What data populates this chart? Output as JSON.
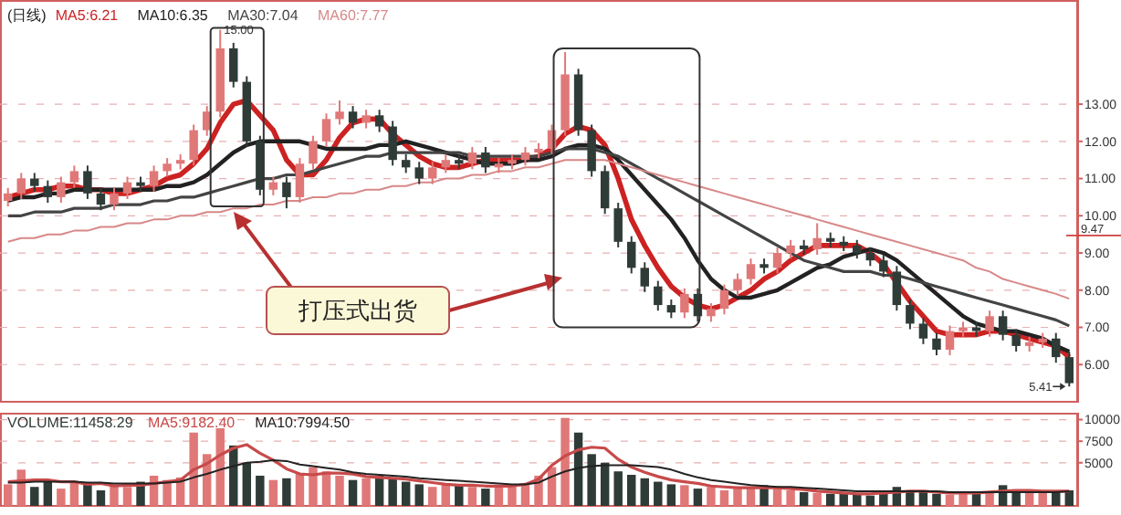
{
  "chart_data": [
    {
      "type": "candlestick",
      "title": "(日线)",
      "categories": [
        null,
        null,
        null,
        null,
        null,
        null,
        null,
        null,
        null,
        null,
        null,
        null,
        null,
        null,
        null,
        null,
        null,
        null,
        null,
        null,
        null,
        null,
        null,
        null,
        null,
        null,
        null,
        null,
        null,
        null,
        null,
        null,
        null,
        null,
        null,
        null,
        null,
        null,
        null,
        null,
        null,
        null,
        null,
        null,
        null,
        null,
        null,
        null,
        null,
        null,
        null,
        null,
        null,
        null,
        null,
        null,
        null,
        null,
        null,
        null,
        null,
        null,
        null,
        null,
        null,
        null,
        null,
        null,
        null,
        null,
        null,
        null,
        null,
        null,
        null,
        null,
        null,
        null,
        null,
        null,
        null
      ],
      "ylim": [
        5.0,
        15.8
      ],
      "yticks": [
        {
          "value": 13,
          "label": "13.00"
        },
        {
          "value": 12,
          "label": "12.00"
        },
        {
          "value": 11,
          "label": "11.00"
        },
        {
          "value": 10,
          "label": "10.00"
        },
        {
          "value": 9,
          "label": "9.00"
        },
        {
          "value": 8,
          "label": "8.00"
        },
        {
          "value": 7,
          "label": "7.00"
        },
        {
          "value": 6,
          "label": "6.00"
        }
      ],
      "grid": "y",
      "legend": "top left",
      "series": [
        {
          "type": "line",
          "name": "MA5:6.21",
          "color": "#cc2222",
          "values": [
            10.5,
            10.6,
            10.7,
            10.7,
            10.8,
            10.8,
            10.7,
            10.7,
            10.6,
            10.6,
            10.7,
            10.8,
            11.0,
            11.1,
            11.4,
            11.8,
            12.5,
            13.0,
            13.1,
            12.7,
            12.3,
            11.5,
            11.1,
            11.1,
            11.5,
            12.1,
            12.5,
            12.6,
            12.6,
            12.2,
            11.9,
            11.6,
            11.4,
            11.3,
            11.3,
            11.4,
            11.5,
            11.5,
            11.5,
            11.5,
            11.6,
            11.8,
            12.2,
            12.4,
            12.3,
            11.9,
            11.0,
            9.9,
            9.2,
            8.6,
            8.1,
            7.8,
            7.6,
            7.5,
            7.6,
            7.8,
            8.0,
            8.3,
            8.5,
            8.8,
            9.0,
            9.2,
            9.2,
            9.2,
            9.2,
            9.0,
            8.7,
            8.2,
            7.7,
            7.3,
            6.9,
            6.8,
            6.8,
            6.8,
            6.9,
            6.9,
            6.8,
            6.7,
            6.6,
            6.5,
            6.2
          ]
        },
        {
          "type": "line",
          "name": "MA10:6.35",
          "color": "#222222",
          "values": [
            10.4,
            10.5,
            10.5,
            10.6,
            10.6,
            10.7,
            10.7,
            10.7,
            10.7,
            10.7,
            10.7,
            10.7,
            10.8,
            10.8,
            10.9,
            11.1,
            11.4,
            11.7,
            11.9,
            12.0,
            12.0,
            12.0,
            12.0,
            11.9,
            11.8,
            11.8,
            11.8,
            11.8,
            11.9,
            11.9,
            12.0,
            11.9,
            11.8,
            11.7,
            11.6,
            11.5,
            11.4,
            11.4,
            11.4,
            11.5,
            11.5,
            11.6,
            11.8,
            11.9,
            11.9,
            11.8,
            11.5,
            11.1,
            10.7,
            10.3,
            9.9,
            9.4,
            8.8,
            8.3,
            8.0,
            7.8,
            7.8,
            7.9,
            8.0,
            8.2,
            8.4,
            8.6,
            8.7,
            8.9,
            9.0,
            9.1,
            9.0,
            8.8,
            8.5,
            8.2,
            7.9,
            7.6,
            7.3,
            7.1,
            7.0,
            6.9,
            6.9,
            6.8,
            6.7,
            6.5,
            6.35
          ]
        },
        {
          "type": "line",
          "name": "MA30:7.04",
          "color": "#444444",
          "values": [
            10.0,
            10.0,
            10.1,
            10.1,
            10.1,
            10.2,
            10.2,
            10.2,
            10.3,
            10.3,
            10.3,
            10.4,
            10.4,
            10.5,
            10.5,
            10.6,
            10.7,
            10.8,
            10.9,
            11.0,
            11.0,
            11.1,
            11.1,
            11.2,
            11.3,
            11.4,
            11.5,
            11.6,
            11.6,
            11.7,
            11.7,
            11.7,
            11.7,
            11.7,
            11.7,
            11.6,
            11.6,
            11.6,
            11.6,
            11.6,
            11.6,
            11.7,
            11.8,
            11.8,
            11.8,
            11.7,
            11.6,
            11.4,
            11.2,
            11.0,
            10.8,
            10.6,
            10.4,
            10.2,
            10.0,
            9.8,
            9.6,
            9.4,
            9.2,
            9.0,
            8.8,
            8.7,
            8.6,
            8.5,
            8.5,
            8.5,
            8.4,
            8.4,
            8.3,
            8.2,
            8.1,
            8.0,
            7.9,
            7.8,
            7.7,
            7.6,
            7.5,
            7.4,
            7.3,
            7.2,
            7.04
          ]
        },
        {
          "type": "line",
          "name": "MA60:7.77",
          "color": "#d88888",
          "values": [
            9.3,
            9.4,
            9.4,
            9.5,
            9.5,
            9.6,
            9.6,
            9.7,
            9.7,
            9.8,
            9.8,
            9.9,
            9.9,
            10.0,
            10.0,
            10.1,
            10.1,
            10.2,
            10.2,
            10.3,
            10.3,
            10.4,
            10.4,
            10.5,
            10.5,
            10.6,
            10.6,
            10.7,
            10.7,
            10.8,
            10.8,
            10.9,
            10.9,
            11.0,
            11.0,
            11.1,
            11.1,
            11.2,
            11.2,
            11.3,
            11.3,
            11.4,
            11.5,
            11.5,
            11.5,
            11.5,
            11.4,
            11.3,
            11.2,
            11.1,
            11.0,
            10.9,
            10.8,
            10.7,
            10.6,
            10.5,
            10.4,
            10.3,
            10.2,
            10.1,
            10.0,
            9.9,
            9.8,
            9.7,
            9.6,
            9.5,
            9.4,
            9.3,
            9.2,
            9.1,
            9.0,
            8.9,
            8.8,
            8.6,
            8.5,
            8.3,
            8.2,
            8.1,
            8.0,
            7.9,
            7.77
          ]
        },
        {
          "colors": [
            "#e07878",
            "#e07878",
            "#2f3b37",
            "#2f3b37",
            "#e07878",
            "#e07878",
            "#2f3b37",
            "#2f3b37",
            "#e07878",
            "#e07878",
            "#2f3b37",
            "#e07878",
            "#e07878",
            "#e07878",
            "#e07878",
            "#e07878",
            "#e07878",
            "#2f3b37",
            "#2f3b37",
            "#2f3b37",
            "#e07878",
            "#2f3b37",
            "#e07878",
            "#e07878",
            "#e07878",
            "#e07878",
            "#2f3b37",
            "#e07878",
            "#2f3b37",
            "#2f3b37",
            "#2f3b37",
            "#2f3b37",
            "#e07878",
            "#e07878",
            "#2f3b37",
            "#e07878",
            "#2f3b37",
            "#e07878",
            "#e07878",
            "#e07878",
            "#e07878",
            "#e07878",
            "#e07878",
            "#2f3b37",
            "#2f3b37",
            "#2f3b37",
            "#2f3b37",
            "#2f3b37",
            "#2f3b37",
            "#2f3b37",
            "#2f3b37",
            "#e07878",
            "#2f3b37",
            "#e07878",
            "#e07878",
            "#e07878",
            "#e07878",
            "#2f3b37",
            "#e07878",
            "#e07878",
            "#2f3b37",
            "#e07878",
            "#2f3b37",
            "#2f3b37",
            "#2f3b37",
            "#2f3b37",
            "#2f3b37",
            "#2f3b37",
            "#2f3b37",
            "#2f3b37",
            "#2f3b37",
            "#e07878",
            "#e07878",
            "#2f3b37",
            "#e07878",
            "#2f3b37",
            "#2f3b37",
            "#e07878",
            "#e07878",
            "#2f3b37",
            "#2f3b37"
          ],
          "ohlc": [
            [
              10.4,
              10.75,
              10.25,
              10.6
            ],
            [
              10.6,
              11.15,
              10.45,
              11.0
            ],
            [
              11.0,
              11.15,
              10.65,
              10.8
            ],
            [
              10.8,
              10.95,
              10.35,
              10.5
            ],
            [
              10.5,
              11.05,
              10.35,
              10.9
            ],
            [
              10.9,
              11.35,
              10.75,
              11.2
            ],
            [
              11.2,
              11.35,
              10.45,
              10.6
            ],
            [
              10.6,
              10.75,
              10.15,
              10.3
            ],
            [
              10.3,
              10.75,
              10.15,
              10.6
            ],
            [
              10.6,
              11.05,
              10.45,
              10.9
            ],
            [
              10.9,
              11.05,
              10.65,
              10.8
            ],
            [
              10.8,
              11.35,
              10.65,
              11.2
            ],
            [
              11.2,
              11.55,
              11.05,
              11.4
            ],
            [
              11.4,
              11.65,
              11.25,
              11.5
            ],
            [
              11.5,
              12.45,
              11.35,
              12.3
            ],
            [
              12.3,
              12.95,
              12.15,
              12.8
            ],
            [
              12.8,
              15.0,
              12.65,
              14.5
            ],
            [
              14.5,
              14.65,
              13.45,
              13.6
            ],
            [
              13.6,
              13.75,
              11.85,
              12.0
            ],
            [
              12.0,
              12.15,
              10.55,
              10.7
            ],
            [
              10.7,
              11.05,
              10.55,
              10.9
            ],
            [
              10.9,
              11.05,
              10.2,
              10.5
            ],
            [
              10.5,
              11.55,
              10.35,
              11.4
            ],
            [
              11.4,
              12.15,
              11.25,
              12.0
            ],
            [
              12.0,
              12.75,
              11.85,
              12.6
            ],
            [
              12.6,
              13.1,
              12.45,
              12.8
            ],
            [
              12.8,
              12.95,
              12.35,
              12.5
            ],
            [
              12.5,
              12.85,
              12.35,
              12.7
            ],
            [
              12.7,
              12.85,
              12.25,
              12.4
            ],
            [
              12.4,
              12.55,
              11.35,
              11.5
            ],
            [
              11.5,
              11.65,
              11.15,
              11.3
            ],
            [
              11.3,
              11.45,
              10.85,
              11.0
            ],
            [
              11.0,
              11.45,
              10.85,
              11.3
            ],
            [
              11.3,
              11.65,
              11.15,
              11.5
            ],
            [
              11.5,
              11.65,
              11.25,
              11.4
            ],
            [
              11.4,
              11.85,
              11.25,
              11.7
            ],
            [
              11.7,
              11.85,
              11.15,
              11.3
            ],
            [
              11.3,
              11.55,
              11.15,
              11.4
            ],
            [
              11.4,
              11.65,
              11.25,
              11.5
            ],
            [
              11.5,
              11.85,
              11.35,
              11.7
            ],
            [
              11.7,
              11.95,
              11.55,
              11.8
            ],
            [
              11.8,
              12.45,
              11.65,
              12.3
            ],
            [
              12.3,
              14.4,
              12.15,
              13.8
            ],
            [
              13.8,
              13.95,
              12.15,
              12.3
            ],
            [
              12.3,
              12.45,
              11.05,
              11.2
            ],
            [
              11.2,
              11.35,
              10.05,
              10.2
            ],
            [
              10.2,
              10.35,
              9.15,
              9.3
            ],
            [
              9.3,
              9.45,
              8.45,
              8.6
            ],
            [
              8.6,
              8.75,
              7.95,
              8.1
            ],
            [
              8.1,
              8.25,
              7.45,
              7.6
            ],
            [
              7.6,
              7.75,
              7.25,
              7.4
            ],
            [
              7.4,
              8.05,
              7.25,
              7.9
            ],
            [
              7.9,
              8.05,
              7.15,
              7.3
            ],
            [
              7.3,
              7.65,
              7.15,
              7.5
            ],
            [
              7.5,
              8.15,
              7.35,
              8.0
            ],
            [
              8.0,
              8.45,
              7.85,
              8.3
            ],
            [
              8.3,
              8.85,
              8.15,
              8.7
            ],
            [
              8.7,
              8.85,
              8.45,
              8.6
            ],
            [
              8.6,
              9.15,
              8.45,
              9.0
            ],
            [
              9.0,
              9.35,
              8.85,
              9.2
            ],
            [
              9.2,
              9.35,
              8.95,
              9.1
            ],
            [
              9.1,
              9.8,
              8.95,
              9.4
            ],
            [
              9.4,
              9.55,
              9.15,
              9.3
            ],
            [
              9.3,
              9.45,
              9.05,
              9.2
            ],
            [
              9.2,
              9.35,
              8.85,
              9.0
            ],
            [
              9.0,
              9.15,
              8.65,
              8.8
            ],
            [
              8.8,
              8.95,
              8.35,
              8.5
            ],
            [
              8.5,
              8.65,
              7.45,
              7.6
            ],
            [
              7.6,
              7.75,
              6.95,
              7.1
            ],
            [
              7.1,
              7.25,
              6.55,
              6.7
            ],
            [
              6.7,
              6.85,
              6.25,
              6.4
            ],
            [
              6.4,
              7.05,
              6.25,
              6.9
            ],
            [
              6.9,
              7.15,
              6.75,
              7.0
            ],
            [
              7.0,
              7.15,
              6.75,
              6.9
            ],
            [
              6.9,
              7.45,
              6.75,
              7.3
            ],
            [
              7.3,
              7.45,
              6.65,
              6.8
            ],
            [
              6.8,
              6.95,
              6.35,
              6.5
            ],
            [
              6.5,
              6.75,
              6.35,
              6.6
            ],
            [
              6.6,
              6.85,
              6.45,
              6.7
            ],
            [
              6.7,
              6.85,
              6.05,
              6.2
            ],
            [
              6.2,
              6.35,
              5.41,
              5.5
            ]
          ]
        }
      ],
      "ref_lines": [
        {
          "axis": "y",
          "value": 9.47,
          "label": "9.47",
          "color": "#d04040"
        }
      ],
      "annotations": [
        "15.00",
        "5.41",
        "打压式出货"
      ]
    },
    {
      "type": "bar",
      "categories": [
        null,
        null,
        null,
        null,
        null,
        null,
        null,
        null,
        null,
        null,
        null,
        null,
        null,
        null,
        null,
        null,
        null,
        null,
        null,
        null,
        null,
        null,
        null,
        null,
        null,
        null,
        null,
        null,
        null,
        null,
        null,
        null,
        null,
        null,
        null,
        null,
        null,
        null,
        null,
        null,
        null,
        null,
        null,
        null,
        null,
        null,
        null,
        null,
        null,
        null,
        null,
        null,
        null,
        null,
        null,
        null,
        null,
        null,
        null,
        null,
        null,
        null,
        null,
        null,
        null,
        null,
        null,
        null,
        null,
        null,
        null,
        null,
        null,
        null,
        null,
        null,
        null,
        null,
        null,
        null,
        null
      ],
      "ylim": [
        0,
        10800
      ],
      "yticks": [
        10000,
        7500,
        5000
      ],
      "grid": "y",
      "legend": "top left",
      "series": [
        {
          "name": "VOLUME:11458.29",
          "color": "#2f3b37",
          "colors": [
            "#e07878",
            "#e07878",
            "#2f3b37",
            "#2f3b37",
            "#e07878",
            "#e07878",
            "#2f3b37",
            "#2f3b37",
            "#e07878",
            "#e07878",
            "#2f3b37",
            "#e07878",
            "#e07878",
            "#e07878",
            "#e07878",
            "#e07878",
            "#e07878",
            "#2f3b37",
            "#2f3b37",
            "#2f3b37",
            "#e07878",
            "#2f3b37",
            "#e07878",
            "#e07878",
            "#e07878",
            "#e07878",
            "#2f3b37",
            "#e07878",
            "#2f3b37",
            "#2f3b37",
            "#2f3b37",
            "#2f3b37",
            "#e07878",
            "#e07878",
            "#2f3b37",
            "#e07878",
            "#2f3b37",
            "#e07878",
            "#e07878",
            "#e07878",
            "#e07878",
            "#e07878",
            "#e07878",
            "#2f3b37",
            "#2f3b37",
            "#2f3b37",
            "#2f3b37",
            "#2f3b37",
            "#2f3b37",
            "#2f3b37",
            "#2f3b37",
            "#e07878",
            "#2f3b37",
            "#e07878",
            "#e07878",
            "#e07878",
            "#e07878",
            "#2f3b37",
            "#e07878",
            "#e07878",
            "#2f3b37",
            "#e07878",
            "#2f3b37",
            "#2f3b37",
            "#2f3b37",
            "#2f3b37",
            "#2f3b37",
            "#2f3b37",
            "#2f3b37",
            "#2f3b37",
            "#2f3b37",
            "#e07878",
            "#e07878",
            "#2f3b37",
            "#e07878",
            "#2f3b37",
            "#2f3b37",
            "#e07878",
            "#e07878",
            "#2f3b37",
            "#2f3b37"
          ],
          "values": [
            2500,
            4200,
            2200,
            3000,
            2000,
            2800,
            2600,
            1800,
            2500,
            2200,
            2800,
            3500,
            3000,
            3300,
            8500,
            6000,
            9000,
            7000,
            5000,
            3500,
            3000,
            3200,
            3800,
            4500,
            4000,
            3500,
            3000,
            3200,
            3500,
            3300,
            2800,
            2500,
            2200,
            2600,
            2400,
            2200,
            2000,
            2300,
            2400,
            2600,
            3500,
            4500,
            10200,
            8500,
            6000,
            5000,
            4000,
            3600,
            3200,
            2800,
            2500,
            2400,
            2000,
            2200,
            1800,
            2000,
            2200,
            2400,
            2000,
            1800,
            1600,
            1500,
            1400,
            1500,
            1300,
            1200,
            1500,
            2200,
            1800,
            1600,
            1400,
            1300,
            1500,
            1600,
            1500,
            2400,
            1800,
            1600,
            1500,
            1700,
            1800
          ]
        },
        {
          "type": "line",
          "name": "MA5:9182.40",
          "color": "#c84a4a",
          "values": [
            2800,
            2900,
            3000,
            3000,
            2800,
            2800,
            2500,
            2600,
            2300,
            2400,
            2400,
            2600,
            2800,
            3000,
            4200,
            4900,
            5900,
            6700,
            7100,
            6100,
            5300,
            4300,
            3700,
            3600,
            3800,
            3800,
            3700,
            3400,
            3300,
            3200,
            3100,
            2900,
            2700,
            2500,
            2400,
            2400,
            2300,
            2300,
            2300,
            2500,
            3100,
            4700,
            5800,
            6500,
            6800,
            6700,
            5400,
            4500,
            3900,
            3400,
            3000,
            2800,
            2600,
            2300,
            2200,
            2100,
            2100,
            2100,
            2100,
            2000,
            1900,
            1700,
            1600,
            1500,
            1400,
            1400,
            1500,
            1600,
            1700,
            1700,
            1600,
            1500,
            1500,
            1500,
            1600,
            1700,
            1800,
            1800,
            1700,
            1700,
            1700
          ]
        },
        {
          "type": "line",
          "name": "MA10:7994.50",
          "color": "#222222",
          "values": [
            2700,
            2700,
            2800,
            2800,
            2800,
            2800,
            2700,
            2700,
            2600,
            2600,
            2600,
            2600,
            2700,
            2800,
            3300,
            3700,
            4200,
            4600,
            5000,
            5100,
            5300,
            5200,
            4800,
            4600,
            4400,
            4200,
            3900,
            3700,
            3600,
            3500,
            3400,
            3200,
            3100,
            3000,
            2900,
            2800,
            2700,
            2600,
            2500,
            2500,
            2700,
            3400,
            4000,
            4400,
            4600,
            4700,
            4700,
            4700,
            4600,
            4500,
            4200,
            3700,
            3300,
            3000,
            2800,
            2600,
            2400,
            2300,
            2200,
            2200,
            2100,
            2000,
            1900,
            1800,
            1700,
            1700,
            1700,
            1700,
            1700,
            1700,
            1700,
            1600,
            1600,
            1600,
            1600,
            1600,
            1600,
            1600,
            1600,
            1600,
            1700
          ]
        }
      ]
    }
  ]
}
